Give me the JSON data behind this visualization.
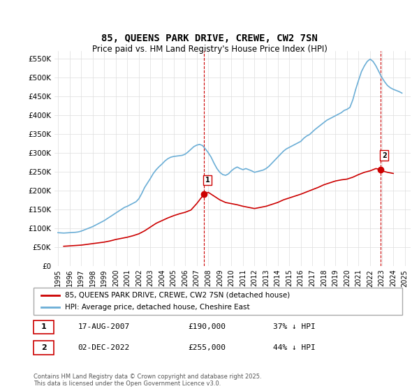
{
  "title": "85, QUEENS PARK DRIVE, CREWE, CW2 7SN",
  "subtitle": "Price paid vs. HM Land Registry's House Price Index (HPI)",
  "hpi_color": "#6baed6",
  "price_color": "#cc0000",
  "dashed_color": "#cc0000",
  "background_color": "#ffffff",
  "grid_color": "#dddddd",
  "ylabel_ticks": [
    "£0",
    "£50K",
    "£100K",
    "£150K",
    "£200K",
    "£250K",
    "£300K",
    "£350K",
    "£400K",
    "£450K",
    "£500K",
    "£550K"
  ],
  "ytick_values": [
    0,
    50000,
    100000,
    150000,
    200000,
    250000,
    300000,
    350000,
    400000,
    450000,
    500000,
    550000
  ],
  "ylim": [
    0,
    570000
  ],
  "xlim_start": 1995,
  "xlim_end": 2025.5,
  "xticks": [
    1995,
    1996,
    1997,
    1998,
    1999,
    2000,
    2001,
    2002,
    2003,
    2004,
    2005,
    2006,
    2007,
    2008,
    2009,
    2010,
    2011,
    2012,
    2013,
    2014,
    2015,
    2016,
    2017,
    2018,
    2019,
    2020,
    2021,
    2022,
    2023,
    2024,
    2025
  ],
  "point1_x": 2007.63,
  "point1_y": 190000,
  "point2_x": 2022.92,
  "point2_y": 255000,
  "point1_label": "1",
  "point2_label": "2",
  "legend_line1": "85, QUEENS PARK DRIVE, CREWE, CW2 7SN (detached house)",
  "legend_line2": "HPI: Average price, detached house, Cheshire East",
  "table_row1": [
    "1",
    "17-AUG-2007",
    "£190,000",
    "37% ↓ HPI"
  ],
  "table_row2": [
    "2",
    "02-DEC-2022",
    "£255,000",
    "44% ↓ HPI"
  ],
  "footnote": "Contains HM Land Registry data © Crown copyright and database right 2025.\nThis data is licensed under the Open Government Licence v3.0.",
  "hpi_data_x": [
    1995.0,
    1995.25,
    1995.5,
    1995.75,
    1996.0,
    1996.25,
    1996.5,
    1996.75,
    1997.0,
    1997.25,
    1997.5,
    1997.75,
    1998.0,
    1998.25,
    1998.5,
    1998.75,
    1999.0,
    1999.25,
    1999.5,
    1999.75,
    2000.0,
    2000.25,
    2000.5,
    2000.75,
    2001.0,
    2001.25,
    2001.5,
    2001.75,
    2002.0,
    2002.25,
    2002.5,
    2002.75,
    2003.0,
    2003.25,
    2003.5,
    2003.75,
    2004.0,
    2004.25,
    2004.5,
    2004.75,
    2005.0,
    2005.25,
    2005.5,
    2005.75,
    2006.0,
    2006.25,
    2006.5,
    2006.75,
    2007.0,
    2007.25,
    2007.5,
    2007.75,
    2008.0,
    2008.25,
    2008.5,
    2008.75,
    2009.0,
    2009.25,
    2009.5,
    2009.75,
    2010.0,
    2010.25,
    2010.5,
    2010.75,
    2011.0,
    2011.25,
    2011.5,
    2011.75,
    2012.0,
    2012.25,
    2012.5,
    2012.75,
    2013.0,
    2013.25,
    2013.5,
    2013.75,
    2014.0,
    2014.25,
    2014.5,
    2014.75,
    2015.0,
    2015.25,
    2015.5,
    2015.75,
    2016.0,
    2016.25,
    2016.5,
    2016.75,
    2017.0,
    2017.25,
    2017.5,
    2017.75,
    2018.0,
    2018.25,
    2018.5,
    2018.75,
    2019.0,
    2019.25,
    2019.5,
    2019.75,
    2020.0,
    2020.25,
    2020.5,
    2020.75,
    2021.0,
    2021.25,
    2021.5,
    2021.75,
    2022.0,
    2022.25,
    2022.5,
    2022.75,
    2023.0,
    2023.25,
    2023.5,
    2023.75,
    2024.0,
    2024.25,
    2024.5,
    2024.75
  ],
  "hpi_data_y": [
    88000,
    87500,
    87000,
    87500,
    88000,
    88500,
    89000,
    90000,
    92000,
    95000,
    98000,
    101000,
    104000,
    108000,
    112000,
    116000,
    120000,
    125000,
    130000,
    135000,
    140000,
    145000,
    150000,
    155000,
    158000,
    162000,
    166000,
    170000,
    178000,
    192000,
    208000,
    220000,
    232000,
    245000,
    255000,
    263000,
    270000,
    278000,
    284000,
    288000,
    290000,
    291000,
    292000,
    293000,
    296000,
    302000,
    309000,
    316000,
    320000,
    322000,
    319000,
    310000,
    300000,
    288000,
    272000,
    258000,
    248000,
    242000,
    240000,
    244000,
    252000,
    258000,
    262000,
    258000,
    255000,
    258000,
    255000,
    252000,
    248000,
    250000,
    252000,
    254000,
    258000,
    264000,
    272000,
    280000,
    288000,
    296000,
    304000,
    310000,
    314000,
    318000,
    322000,
    326000,
    330000,
    338000,
    344000,
    348000,
    355000,
    362000,
    368000,
    374000,
    380000,
    386000,
    390000,
    394000,
    398000,
    402000,
    406000,
    412000,
    415000,
    420000,
    440000,
    468000,
    492000,
    515000,
    530000,
    542000,
    548000,
    542000,
    530000,
    515000,
    500000,
    488000,
    478000,
    472000,
    468000,
    465000,
    462000,
    458000
  ],
  "price_data_x": [
    1995.5,
    1996.0,
    1996.5,
    1997.0,
    1997.5,
    1998.0,
    1998.5,
    1999.0,
    1999.5,
    2000.0,
    2000.5,
    2001.0,
    2001.5,
    2002.0,
    2002.5,
    2003.0,
    2003.5,
    2004.0,
    2004.5,
    2005.0,
    2005.5,
    2006.0,
    2006.5,
    2007.0,
    2007.63,
    2008.0,
    2008.5,
    2009.0,
    2009.5,
    2010.0,
    2010.5,
    2011.0,
    2011.5,
    2012.0,
    2012.5,
    2013.0,
    2013.5,
    2014.0,
    2014.5,
    2015.0,
    2015.5,
    2016.0,
    2016.5,
    2017.0,
    2017.5,
    2018.0,
    2018.5,
    2019.0,
    2019.5,
    2020.0,
    2020.5,
    2021.0,
    2021.5,
    2022.0,
    2022.5,
    2022.92,
    2023.0,
    2023.5,
    2024.0
  ],
  "price_data_y": [
    52000,
    53000,
    54000,
    55000,
    57000,
    59000,
    61000,
    63000,
    66000,
    70000,
    73000,
    76000,
    80000,
    85000,
    93000,
    103000,
    113000,
    120000,
    127000,
    133000,
    138000,
    142000,
    148000,
    165000,
    190000,
    195000,
    185000,
    175000,
    168000,
    165000,
    162000,
    158000,
    155000,
    152000,
    155000,
    158000,
    163000,
    168000,
    175000,
    180000,
    185000,
    190000,
    196000,
    202000,
    208000,
    215000,
    220000,
    225000,
    228000,
    230000,
    235000,
    242000,
    248000,
    252000,
    258000,
    255000,
    252000,
    248000,
    245000
  ]
}
